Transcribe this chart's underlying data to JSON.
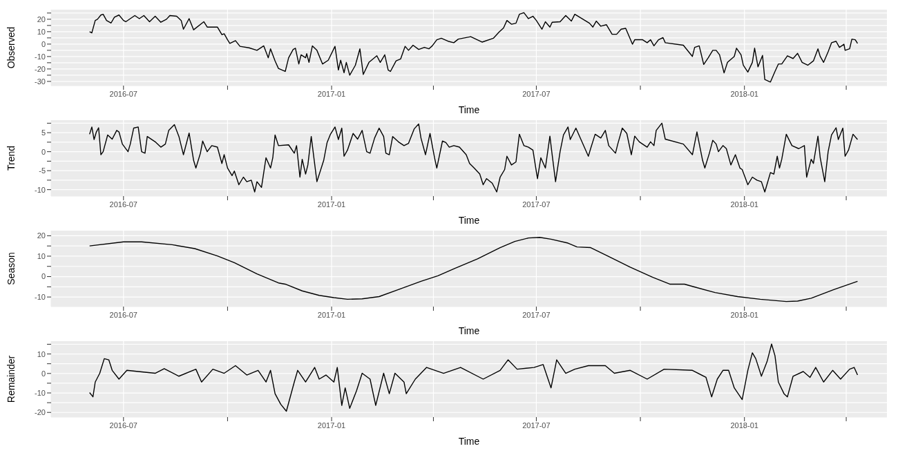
{
  "chart_data": [
    {
      "type": "line",
      "xlabel": "Time",
      "ylabel": "Observed",
      "grid": true,
      "xlim": [
        "2016-04-28",
        "2018-05-07"
      ],
      "xticks": [
        {
          "value": "2016-07-01",
          "label": "2016-07"
        },
        {
          "value": "2016-10-01",
          "label": null
        },
        {
          "value": "2017-01-01",
          "label": "2017-01"
        },
        {
          "value": "2017-04-01",
          "label": null
        },
        {
          "value": "2017-07-01",
          "label": "2017-07"
        },
        {
          "value": "2017-10-01",
          "label": null
        },
        {
          "value": "2018-01-01",
          "label": "2018-01"
        },
        {
          "value": "2018-04-01",
          "label": null
        }
      ],
      "ylim": [
        -33.4,
        27.7
      ],
      "yticks": [
        {
          "value": -30,
          "label": "-30"
        },
        {
          "value": -25,
          "label": null
        },
        {
          "value": -20,
          "label": "-20"
        },
        {
          "value": -15,
          "label": null
        },
        {
          "value": -10,
          "label": "-10"
        },
        {
          "value": -5,
          "label": null
        },
        {
          "value": 0,
          "label": "0"
        },
        {
          "value": 5,
          "label": null
        },
        {
          "value": 10,
          "label": "10"
        },
        {
          "value": 15,
          "label": null
        },
        {
          "value": 20,
          "label": "20"
        },
        {
          "value": 25,
          "label": null
        }
      ],
      "x": [
        "2016-06-01",
        "2016-06-03",
        "2016-06-06",
        "2016-06-08",
        "2016-06-11",
        "2016-06-13",
        "2016-06-16",
        "2016-06-20",
        "2016-06-23",
        "2016-06-27",
        "2016-07-01",
        "2016-07-03",
        "2016-07-11",
        "2016-07-15",
        "2016-07-19",
        "2016-07-24",
        "2016-07-29",
        "2016-08-03",
        "2016-08-08",
        "2016-08-11",
        "2016-08-17",
        "2016-08-21",
        "2016-08-23",
        "2016-08-28",
        "2016-09-01",
        "2016-09-10",
        "2016-09-13",
        "2016-09-22",
        "2016-09-26",
        "2016-09-28",
        "2016-10-01",
        "2016-10-03",
        "2016-10-08",
        "2016-10-12",
        "2016-10-20",
        "2016-10-27",
        "2016-11-02",
        "2016-11-06",
        "2016-11-08",
        "2016-11-12",
        "2016-11-15",
        "2016-11-21",
        "2016-11-24",
        "2016-11-28",
        "2016-11-30",
        "2016-12-03",
        "2016-12-05",
        "2016-12-09",
        "2016-12-10",
        "2016-12-12",
        "2016-12-15",
        "2016-12-19",
        "2016-12-24",
        "2016-12-29",
        "2017-01-04",
        "2017-01-07",
        "2017-01-09",
        "2017-01-12",
        "2017-01-14",
        "2017-01-17",
        "2017-01-22",
        "2017-01-26",
        "2017-01-29",
        "2017-02-03",
        "2017-02-10",
        "2017-02-13",
        "2017-02-17",
        "2017-02-20",
        "2017-02-22",
        "2017-02-27",
        "2017-03-03",
        "2017-03-07",
        "2017-03-10",
        "2017-03-14",
        "2017-03-19",
        "2017-03-24",
        "2017-03-28",
        "2017-03-31",
        "2017-04-04",
        "2017-04-08",
        "2017-04-14",
        "2017-04-19",
        "2017-04-23",
        "2017-05-04",
        "2017-05-14",
        "2017-05-24",
        "2017-05-29",
        "2017-06-02",
        "2017-06-05",
        "2017-06-09",
        "2017-06-13",
        "2017-06-16",
        "2017-06-20",
        "2017-06-24",
        "2017-06-28",
        "2017-07-01",
        "2017-07-06",
        "2017-07-09",
        "2017-07-13",
        "2017-07-15",
        "2017-07-22",
        "2017-07-27",
        "2017-08-01",
        "2017-08-04",
        "2017-08-17",
        "2017-08-20",
        "2017-08-23",
        "2017-08-27",
        "2017-09-01",
        "2017-09-06",
        "2017-09-10",
        "2017-09-14",
        "2017-09-18",
        "2017-09-24",
        "2017-09-26",
        "2017-10-03",
        "2017-10-07",
        "2017-10-10",
        "2017-10-13",
        "2017-10-17",
        "2017-10-21",
        "2017-10-23",
        "2017-11-08",
        "2017-11-16",
        "2017-11-18",
        "2017-11-22",
        "2017-11-26",
        "2017-11-30",
        "2017-12-04",
        "2017-12-07",
        "2017-12-10",
        "2017-12-14",
        "2017-12-17",
        "2017-12-23",
        "2017-12-25",
        "2017-12-29",
        "2017-12-31",
        "2018-01-04",
        "2018-01-08",
        "2018-01-10",
        "2018-01-13",
        "2018-01-17",
        "2018-01-19",
        "2018-01-24",
        "2018-01-28",
        "2018-01-31",
        "2018-02-03",
        "2018-02-08",
        "2018-02-13",
        "2018-02-17",
        "2018-02-21",
        "2018-02-26",
        "2018-03-03",
        "2018-03-07",
        "2018-03-09",
        "2018-03-12",
        "2018-03-16",
        "2018-03-19",
        "2018-03-23",
        "2018-03-26",
        "2018-03-30",
        "2018-03-31",
        "2018-04-04",
        "2018-04-06",
        "2018-04-09",
        "2018-04-11"
      ],
      "series": [
        {
          "color": "#000000",
          "values": [
            10,
            9,
            19,
            20,
            23.4,
            24,
            19,
            17,
            21.7,
            23.4,
            19,
            18,
            23,
            20.5,
            23,
            18,
            22.4,
            17.6,
            20,
            23,
            22.4,
            19,
            12,
            20.5,
            11.5,
            18,
            13.7,
            13.7,
            7.6,
            8.3,
            3.5,
            0.6,
            2.8,
            -1.8,
            -3,
            -5,
            -1.4,
            -11,
            -3.8,
            -13.5,
            -19.6,
            -22,
            -11,
            -4.3,
            -3.3,
            -16,
            -8.6,
            -11,
            -7.7,
            -14.7,
            -1.4,
            -5,
            -16,
            -13,
            -1.8,
            -20.8,
            -13,
            -23,
            -14.7,
            -25,
            -17,
            -3.8,
            -24.4,
            -14.7,
            -9.4,
            -14.7,
            -8.6,
            -20.8,
            -22,
            -13.5,
            -12,
            -1.8,
            -5,
            -0.9,
            -4.3,
            -2.6,
            -3.8,
            -1.4,
            3.5,
            4.7,
            2.3,
            1.1,
            4,
            6,
            1.6,
            4.7,
            9.6,
            13,
            19,
            16,
            16.8,
            24,
            25.3,
            20.5,
            22.4,
            19,
            12,
            18,
            13.7,
            17.6,
            18,
            23,
            18.5,
            24,
            16.8,
            13.7,
            18.5,
            14.4,
            15.6,
            7.9,
            7.9,
            12,
            12.7,
            -0.1,
            3.5,
            3.5,
            1.1,
            3.5,
            -1.4,
            3.5,
            5.2,
            1.1,
            -0.9,
            -9.9,
            -2.6,
            -1.4,
            -16.4,
            -11,
            -5,
            -5,
            -8.6,
            -23.2,
            -14.7,
            -9.9,
            -3.3,
            -8.6,
            -17,
            -22.5,
            -14.7,
            -3.3,
            -18.3,
            -9.1,
            -28.5,
            -30.5,
            -22,
            -16,
            -16,
            -9.4,
            -11.6,
            -7.4,
            -14.7,
            -17,
            -13.5,
            -3.8,
            -9.9,
            -14.7,
            -6.2,
            1.1,
            2.3,
            -2.6,
            -0.1,
            -5,
            -3.8,
            4,
            3.5,
            0.6
          ]
        }
      ]
    },
    {
      "type": "line",
      "xlabel": "Time",
      "ylabel": "Trend",
      "grid": true,
      "xlim": [
        "2016-04-28",
        "2018-05-07"
      ],
      "xticks": [
        {
          "value": "2016-07-01",
          "label": "2016-07"
        },
        {
          "value": "2016-10-01",
          "label": null
        },
        {
          "value": "2017-01-01",
          "label": "2017-01"
        },
        {
          "value": "2017-04-01",
          "label": null
        },
        {
          "value": "2017-07-01",
          "label": "2017-07"
        },
        {
          "value": "2017-10-01",
          "label": null
        },
        {
          "value": "2018-01-01",
          "label": "2018-01"
        },
        {
          "value": "2018-04-01",
          "label": null
        }
      ],
      "ylim": [
        -11.7,
        8.3
      ],
      "yticks": [
        {
          "value": -10,
          "label": "-10"
        },
        {
          "value": -7.5,
          "label": null
        },
        {
          "value": -5,
          "label": "-5"
        },
        {
          "value": -2.5,
          "label": null
        },
        {
          "value": 0,
          "label": "0"
        },
        {
          "value": 2.5,
          "label": null
        },
        {
          "value": 5,
          "label": "5"
        },
        {
          "value": 7.5,
          "label": null
        }
      ],
      "x": [
        "2016-06-01",
        "2016-06-03",
        "2016-06-05",
        "2016-06-07",
        "2016-06-09",
        "2016-06-11",
        "2016-06-13",
        "2016-06-17",
        "2016-06-21",
        "2016-06-25",
        "2016-06-27",
        "2016-06-30",
        "2016-07-05",
        "2016-07-07",
        "2016-07-10",
        "2016-07-14",
        "2016-07-17",
        "2016-07-20",
        "2016-07-22",
        "2016-07-29",
        "2016-08-03",
        "2016-08-07",
        "2016-08-10",
        "2016-08-15",
        "2016-08-19",
        "2016-08-23",
        "2016-08-28",
        "2016-09-01",
        "2016-09-03",
        "2016-09-07",
        "2016-09-09",
        "2016-09-13",
        "2016-09-17",
        "2016-09-22",
        "2016-09-26",
        "2016-09-28",
        "2016-10-01",
        "2016-10-05",
        "2016-10-07",
        "2016-10-11",
        "2016-10-15",
        "2016-10-18",
        "2016-10-22",
        "2016-10-25",
        "2016-10-27",
        "2016-10-31",
        "2016-11-02",
        "2016-11-04",
        "2016-11-08",
        "2016-11-10",
        "2016-11-12",
        "2016-11-15",
        "2016-11-24",
        "2016-11-29",
        "2016-12-01",
        "2016-12-04",
        "2016-12-06",
        "2016-12-09",
        "2016-12-11",
        "2016-12-14",
        "2016-12-16",
        "2016-12-19",
        "2016-12-25",
        "2016-12-28",
        "2016-12-31",
        "2017-01-04",
        "2017-01-07",
        "2017-01-10",
        "2017-01-12",
        "2017-01-15",
        "2017-01-20",
        "2017-01-24",
        "2017-01-28",
        "2017-02-01",
        "2017-02-04",
        "2017-02-08",
        "2017-02-12",
        "2017-02-16",
        "2017-02-18",
        "2017-02-21",
        "2017-02-24",
        "2017-03-01",
        "2017-03-06",
        "2017-03-10",
        "2017-03-15",
        "2017-03-19",
        "2017-03-21",
        "2017-03-25",
        "2017-03-29",
        "2017-04-02",
        "2017-04-04",
        "2017-04-09",
        "2017-04-12",
        "2017-04-15",
        "2017-04-19",
        "2017-04-24",
        "2017-04-30",
        "2017-05-03",
        "2017-05-07",
        "2017-05-12",
        "2017-05-15",
        "2017-05-18",
        "2017-05-23",
        "2017-05-27",
        "2017-05-30",
        "2017-06-03",
        "2017-06-05",
        "2017-06-09",
        "2017-06-13",
        "2017-06-16",
        "2017-06-20",
        "2017-06-24",
        "2017-06-28",
        "2017-07-02",
        "2017-07-05",
        "2017-07-09",
        "2017-07-13",
        "2017-07-15",
        "2017-07-18",
        "2017-07-22",
        "2017-07-25",
        "2017-07-29",
        "2017-07-31",
        "2017-08-05",
        "2017-08-16",
        "2017-08-18",
        "2017-08-22",
        "2017-08-27",
        "2017-08-31",
        "2017-09-03",
        "2017-09-09",
        "2017-09-11",
        "2017-09-15",
        "2017-09-19",
        "2017-09-23",
        "2017-09-26",
        "2017-09-30",
        "2017-10-07",
        "2017-10-10",
        "2017-10-13",
        "2017-10-15",
        "2017-10-20",
        "2017-10-23",
        "2017-11-08",
        "2017-11-16",
        "2017-11-20",
        "2017-11-25",
        "2017-11-27",
        "2017-12-01",
        "2017-12-04",
        "2017-12-07",
        "2017-12-09",
        "2017-12-13",
        "2017-12-16",
        "2017-12-20",
        "2017-12-24",
        "2017-12-28",
        "2017-12-30",
        "2018-01-04",
        "2018-01-08",
        "2018-01-12",
        "2018-01-16",
        "2018-01-19",
        "2018-01-24",
        "2018-01-27",
        "2018-01-30",
        "2018-02-01",
        "2018-02-03",
        "2018-02-07",
        "2018-02-12",
        "2018-02-18",
        "2018-02-23",
        "2018-02-25",
        "2018-03-01",
        "2018-03-03",
        "2018-03-07",
        "2018-03-09",
        "2018-03-13",
        "2018-03-16",
        "2018-03-19",
        "2018-03-23",
        "2018-03-25",
        "2018-03-29",
        "2018-03-31",
        "2018-04-03",
        "2018-04-07",
        "2018-04-11"
      ],
      "series": [
        {
          "color": "#000000",
          "values": [
            4.6,
            6.5,
            3.2,
            5.2,
            6.3,
            -0.8,
            0,
            4.4,
            3.3,
            5.6,
            5.2,
            2,
            0,
            2,
            6.2,
            6.5,
            0,
            -0.4,
            4,
            2.6,
            1.2,
            2,
            5.6,
            7.1,
            4,
            -0.8,
            4.9,
            -2.3,
            -4.3,
            -0.4,
            2.8,
            0,
            1.6,
            1.2,
            -3.1,
            -0.8,
            -4.3,
            -6.3,
            -5.1,
            -8.7,
            -6.7,
            -7.9,
            -7.5,
            -10.6,
            -7.9,
            -9.4,
            -5.5,
            -1.6,
            -4.3,
            -1.6,
            4.4,
            1.6,
            1.8,
            -0.4,
            1.6,
            -6.7,
            -2,
            -5.9,
            -3.5,
            4,
            -0.8,
            -7.9,
            -2.3,
            2.4,
            4.6,
            6.5,
            3.2,
            6.2,
            -1.2,
            0.4,
            4.8,
            3.3,
            5.6,
            0,
            -0.4,
            3.6,
            6.2,
            4,
            -0.4,
            -0.8,
            4,
            2.6,
            1.6,
            2.2,
            6,
            7.3,
            3.6,
            -0.8,
            4.8,
            -1.6,
            -4.3,
            2.8,
            2.4,
            1.2,
            1.6,
            1.2,
            -0.8,
            -3.1,
            -4.3,
            -5.9,
            -8.7,
            -7.1,
            -8.3,
            -10.6,
            -6.7,
            -4.7,
            -1.2,
            -3.5,
            -2.7,
            4.6,
            1.6,
            1.2,
            0.4,
            -7.1,
            -1.6,
            -4.3,
            4.1,
            -0.8,
            -7.9,
            0,
            4.4,
            6.5,
            3.2,
            6.2,
            -1.2,
            0.8,
            4.6,
            3.6,
            5.6,
            1.6,
            -0.4,
            2,
            6.2,
            4.8,
            -0.8,
            4.1,
            2.6,
            1.2,
            2.6,
            1.6,
            5.6,
            7.5,
            3.3,
            2,
            -0.8,
            5.2,
            -2.3,
            -4.3,
            -0.4,
            3,
            2,
            0,
            1.6,
            0.8,
            -3.5,
            -0.8,
            -4.3,
            -4.7,
            -8.7,
            -6.7,
            -7.5,
            -7.9,
            -10.6,
            -5.5,
            -5.9,
            -1.2,
            -4.3,
            -2,
            4.6,
            1.6,
            0.8,
            1.6,
            -6.7,
            -2,
            -3.1,
            4.1,
            -1.6,
            -7.9,
            0,
            4.4,
            6.3,
            3.2,
            6.2,
            -1.2,
            0.4,
            4.6,
            3.2
          ]
        }
      ]
    },
    {
      "type": "line",
      "xlabel": "Time",
      "ylabel": "Season",
      "grid": true,
      "xlim": [
        "2016-04-28",
        "2018-05-07"
      ],
      "xticks": [
        {
          "value": "2016-07-01",
          "label": "2016-07"
        },
        {
          "value": "2016-10-01",
          "label": null
        },
        {
          "value": "2017-01-01",
          "label": "2017-01"
        },
        {
          "value": "2017-04-01",
          "label": null
        },
        {
          "value": "2017-07-01",
          "label": "2017-07"
        },
        {
          "value": "2017-10-01",
          "label": null
        },
        {
          "value": "2018-01-01",
          "label": "2018-01"
        },
        {
          "value": "2018-04-01",
          "label": null
        }
      ],
      "ylim": [
        -14.7,
        22.5
      ],
      "yticks": [
        {
          "value": -10,
          "label": "-10"
        },
        {
          "value": -5,
          "label": null
        },
        {
          "value": 0,
          "label": "0"
        },
        {
          "value": 5,
          "label": null
        },
        {
          "value": 10,
          "label": "10"
        },
        {
          "value": 15,
          "label": null
        },
        {
          "value": 20,
          "label": "20"
        }
      ],
      "x": [
        "2016-06-01",
        "2016-07-01",
        "2016-07-17",
        "2016-08-13",
        "2016-09-02",
        "2016-09-22",
        "2016-10-07",
        "2016-10-27",
        "2016-11-15",
        "2016-11-21",
        "2016-12-06",
        "2016-12-21",
        "2017-01-03",
        "2017-01-15",
        "2017-01-28",
        "2017-02-12",
        "2017-03-01",
        "2017-03-21",
        "2017-04-05",
        "2017-04-20",
        "2017-05-10",
        "2017-05-30",
        "2017-06-12",
        "2017-06-24",
        "2017-07-04",
        "2017-07-14",
        "2017-07-29",
        "2017-08-06",
        "2017-08-18",
        "2017-09-02",
        "2017-09-22",
        "2017-10-12",
        "2017-10-27",
        "2017-11-09",
        "2017-11-16",
        "2017-12-06",
        "2017-12-26",
        "2018-01-15",
        "2018-02-07",
        "2018-02-17",
        "2018-03-01",
        "2018-03-21",
        "2018-04-11"
      ],
      "series": [
        {
          "color": "#000000",
          "values": [
            15,
            17,
            17,
            15.6,
            13.7,
            10.1,
            6.8,
            1.3,
            -3.1,
            -3.7,
            -7,
            -9.2,
            -10.3,
            -11.1,
            -10.9,
            -9.8,
            -6.4,
            -2.3,
            0.4,
            4,
            8.7,
            14.2,
            17.2,
            18.9,
            19.2,
            18.3,
            16.4,
            14.5,
            14.2,
            10.1,
            4.6,
            -0.4,
            -3.7,
            -3.7,
            -4.8,
            -7.8,
            -9.8,
            -11.1,
            -12.2,
            -12,
            -10.6,
            -6.4,
            -2.3
          ]
        }
      ]
    },
    {
      "type": "line",
      "xlabel": "Time",
      "ylabel": "Remainder",
      "grid": true,
      "xlim": [
        "2016-04-28",
        "2018-05-07"
      ],
      "xticks": [
        {
          "value": "2016-07-01",
          "label": "2016-07"
        },
        {
          "value": "2016-10-01",
          "label": null
        },
        {
          "value": "2017-01-01",
          "label": "2017-01"
        },
        {
          "value": "2017-04-01",
          "label": null
        },
        {
          "value": "2017-07-01",
          "label": "2017-07"
        },
        {
          "value": "2017-10-01",
          "label": null
        },
        {
          "value": "2018-01-01",
          "label": "2018-01"
        },
        {
          "value": "2018-04-01",
          "label": null
        }
      ],
      "ylim": [
        -22.4,
        16.6
      ],
      "yticks": [
        {
          "value": -20,
          "label": "-20"
        },
        {
          "value": -15,
          "label": null
        },
        {
          "value": -10,
          "label": "-10"
        },
        {
          "value": -5,
          "label": null
        },
        {
          "value": 0,
          "label": "0"
        },
        {
          "value": 5,
          "label": null
        },
        {
          "value": 10,
          "label": "10"
        },
        {
          "value": 15,
          "label": null
        }
      ],
      "x": [
        "2016-06-01",
        "2016-06-04",
        "2016-06-06",
        "2016-06-10",
        "2016-06-14",
        "2016-06-18",
        "2016-06-21",
        "2016-06-27",
        "2016-07-04",
        "2016-07-14",
        "2016-07-29",
        "2016-08-06",
        "2016-08-19",
        "2016-09-03",
        "2016-09-08",
        "2016-09-18",
        "2016-09-28",
        "2016-10-08",
        "2016-10-18",
        "2016-10-28",
        "2016-11-04",
        "2016-11-08",
        "2016-11-12",
        "2016-11-17",
        "2016-11-22",
        "2016-11-29",
        "2016-12-02",
        "2016-12-09",
        "2016-12-17",
        "2016-12-21",
        "2016-12-27",
        "2017-01-03",
        "2017-01-06",
        "2017-01-10",
        "2017-01-13",
        "2017-01-17",
        "2017-01-23",
        "2017-01-28",
        "2017-02-04",
        "2017-02-09",
        "2017-02-16",
        "2017-02-21",
        "2017-02-26",
        "2017-03-06",
        "2017-03-08",
        "2017-03-16",
        "2017-03-26",
        "2017-04-10",
        "2017-04-25",
        "2017-05-15",
        "2017-05-30",
        "2017-06-06",
        "2017-06-14",
        "2017-06-29",
        "2017-07-07",
        "2017-07-14",
        "2017-07-19",
        "2017-07-27",
        "2017-08-04",
        "2017-08-16",
        "2017-08-31",
        "2017-09-08",
        "2017-09-22",
        "2017-10-07",
        "2017-10-22",
        "2017-11-16",
        "2017-11-28",
        "2017-12-03",
        "2017-12-08",
        "2017-12-13",
        "2017-12-18",
        "2017-12-23",
        "2017-12-30",
        "2018-01-04",
        "2018-01-08",
        "2018-01-11",
        "2018-01-16",
        "2018-01-21",
        "2018-01-25",
        "2018-01-28",
        "2018-01-31",
        "2018-02-05",
        "2018-02-08",
        "2018-02-13",
        "2018-02-22",
        "2018-02-28",
        "2018-03-05",
        "2018-03-12",
        "2018-03-20",
        "2018-03-27",
        "2018-04-04",
        "2018-04-08",
        "2018-04-11"
      ],
      "series": [
        {
          "color": "#000000",
          "values": [
            -9.8,
            -12,
            -4.4,
            0.1,
            7.6,
            7,
            1.6,
            -2.9,
            1.6,
            1,
            0.1,
            2.5,
            -1.4,
            2.2,
            -4.4,
            2.2,
            0.1,
            4,
            -0.8,
            1.6,
            -4.4,
            1.6,
            -10.4,
            -15.8,
            -19.4,
            -4.4,
            1.6,
            -4.4,
            3.1,
            -2.9,
            -0.8,
            -4.4,
            3.1,
            -16.4,
            -7.4,
            -17.9,
            -8.9,
            0.1,
            -2.9,
            -16.4,
            0.1,
            -10.4,
            0.1,
            -4.4,
            -10.4,
            -2.9,
            3.1,
            0.1,
            3.1,
            -2.9,
            1.6,
            7,
            2.2,
            3.1,
            4.6,
            -7.4,
            7,
            0.1,
            2.2,
            4,
            4,
            0.1,
            1.6,
            -2.9,
            2.2,
            1.6,
            -2,
            -12,
            -2.9,
            1.6,
            1.6,
            -7.4,
            -13.4,
            1.6,
            10.6,
            7.6,
            -1.4,
            6.1,
            15.1,
            9.1,
            -4.4,
            -10.4,
            -12,
            -1.4,
            1,
            -2,
            3.1,
            -4.4,
            1.6,
            -2.9,
            2.2,
            3.1,
            -0.8
          ]
        }
      ]
    }
  ]
}
